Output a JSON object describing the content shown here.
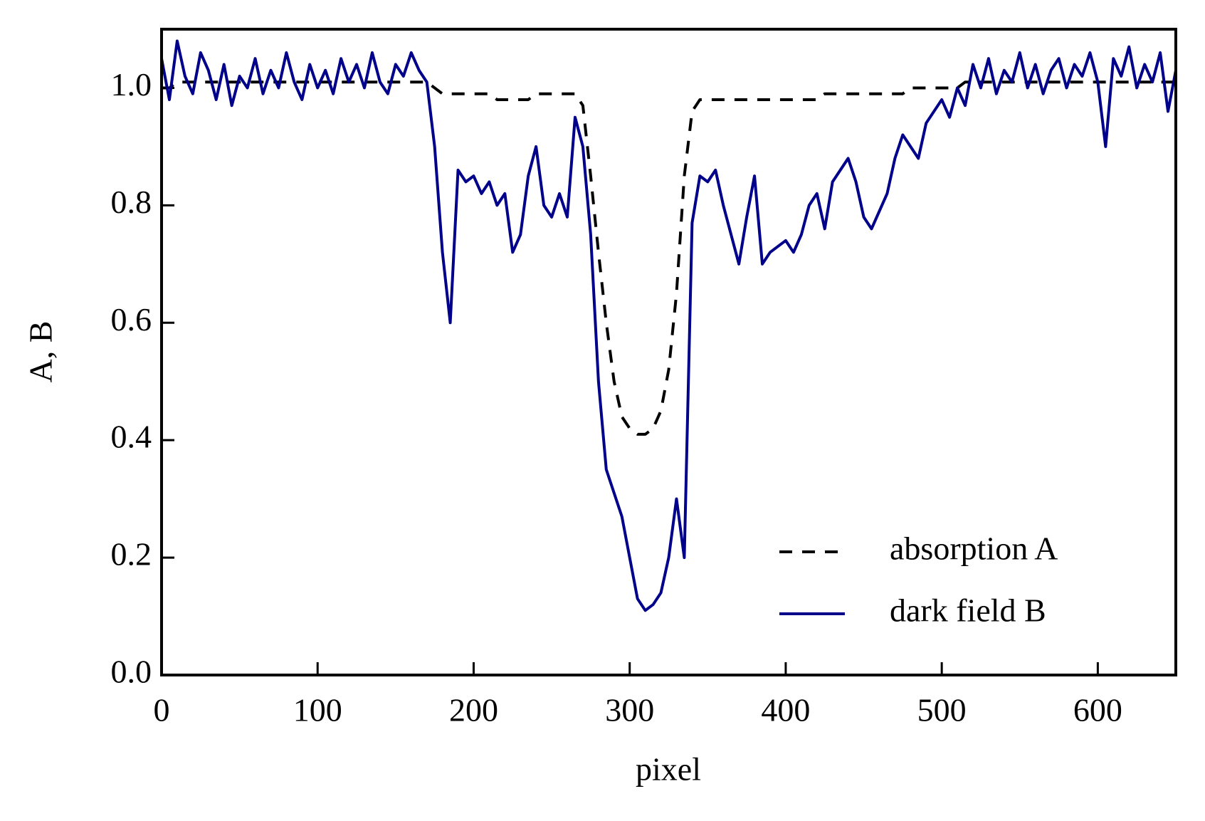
{
  "chart_data": {
    "type": "line",
    "x_label": "pixel",
    "y_label": "A, B",
    "xlim": [
      0,
      650
    ],
    "ylim": [
      0,
      1.1
    ],
    "xticks": [
      0,
      100,
      200,
      300,
      400,
      500,
      600
    ],
    "yticks": [
      {
        "value": 0,
        "label": "0.0"
      },
      {
        "value": 0.2,
        "label": "0.2"
      },
      {
        "value": 0.4,
        "label": "0.4"
      },
      {
        "value": 0.6,
        "label": "0.6"
      },
      {
        "value": 0.8,
        "label": "0.8"
      },
      {
        "value": 1.0,
        "label": "1.0"
      }
    ],
    "grid": false,
    "legend": "lower right",
    "x": [
      0,
      5,
      10,
      15,
      20,
      25,
      30,
      35,
      40,
      45,
      50,
      55,
      60,
      65,
      70,
      75,
      80,
      85,
      90,
      95,
      100,
      105,
      110,
      115,
      120,
      125,
      130,
      135,
      140,
      145,
      150,
      155,
      160,
      165,
      170,
      175,
      180,
      185,
      190,
      195,
      200,
      205,
      210,
      215,
      220,
      225,
      230,
      235,
      240,
      245,
      250,
      255,
      260,
      265,
      270,
      275,
      280,
      285,
      290,
      295,
      300,
      305,
      310,
      315,
      320,
      325,
      330,
      335,
      340,
      345,
      350,
      355,
      360,
      365,
      370,
      375,
      380,
      385,
      390,
      395,
      400,
      405,
      410,
      415,
      420,
      425,
      430,
      435,
      440,
      445,
      450,
      455,
      460,
      465,
      470,
      475,
      480,
      485,
      490,
      495,
      500,
      505,
      510,
      515,
      520,
      525,
      530,
      535,
      540,
      545,
      550,
      555,
      560,
      565,
      570,
      575,
      580,
      585,
      590,
      595,
      600,
      605,
      610,
      615,
      620,
      625,
      630,
      635,
      640,
      645,
      650
    ],
    "series": [
      {
        "name": "absorption A",
        "color": "#000000",
        "linestyle": "dashed",
        "values": [
          1.0,
          1.0,
          1.01,
          1.01,
          1.01,
          1.01,
          1.01,
          1.01,
          1.01,
          1.01,
          1.01,
          1.01,
          1.01,
          1.01,
          1.01,
          1.01,
          1.01,
          1.01,
          1.01,
          1.01,
          1.01,
          1.01,
          1.01,
          1.01,
          1.01,
          1.01,
          1.01,
          1.01,
          1.01,
          1.01,
          1.01,
          1.01,
          1.01,
          1.01,
          1.01,
          1.0,
          0.99,
          0.99,
          0.99,
          0.99,
          0.99,
          0.99,
          0.99,
          0.98,
          0.98,
          0.98,
          0.98,
          0.98,
          0.99,
          0.99,
          0.99,
          0.99,
          0.99,
          0.99,
          0.97,
          0.85,
          0.72,
          0.6,
          0.5,
          0.44,
          0.42,
          0.41,
          0.41,
          0.42,
          0.45,
          0.52,
          0.65,
          0.85,
          0.96,
          0.98,
          0.98,
          0.98,
          0.98,
          0.98,
          0.98,
          0.98,
          0.98,
          0.98,
          0.98,
          0.98,
          0.98,
          0.98,
          0.98,
          0.98,
          0.98,
          0.99,
          0.99,
          0.99,
          0.99,
          0.99,
          0.99,
          0.99,
          0.99,
          0.99,
          0.99,
          0.99,
          1.0,
          1.0,
          1.0,
          1.0,
          1.0,
          1.0,
          1.0,
          1.01,
          1.01,
          1.01,
          1.01,
          1.01,
          1.01,
          1.01,
          1.01,
          1.01,
          1.01,
          1.01,
          1.01,
          1.01,
          1.01,
          1.01,
          1.01,
          1.01,
          1.01,
          1.01,
          1.01,
          1.01,
          1.01,
          1.01,
          1.01,
          1.01,
          1.01,
          1.01,
          1.01
        ]
      },
      {
        "name": "dark field B",
        "color": "#00008b",
        "linestyle": "solid",
        "values": [
          1.05,
          0.98,
          1.08,
          1.02,
          0.99,
          1.06,
          1.03,
          0.98,
          1.04,
          0.97,
          1.02,
          1.0,
          1.05,
          0.99,
          1.03,
          1.0,
          1.06,
          1.01,
          0.98,
          1.04,
          1.0,
          1.03,
          0.99,
          1.05,
          1.01,
          1.04,
          1.0,
          1.06,
          1.01,
          0.99,
          1.04,
          1.02,
          1.06,
          1.03,
          1.01,
          0.9,
          0.72,
          0.6,
          0.86,
          0.84,
          0.85,
          0.82,
          0.84,
          0.8,
          0.82,
          0.72,
          0.75,
          0.85,
          0.9,
          0.8,
          0.78,
          0.82,
          0.78,
          0.95,
          0.9,
          0.75,
          0.5,
          0.35,
          0.31,
          0.27,
          0.2,
          0.13,
          0.11,
          0.12,
          0.14,
          0.2,
          0.3,
          0.2,
          0.77,
          0.85,
          0.84,
          0.86,
          0.8,
          0.75,
          0.7,
          0.78,
          0.85,
          0.7,
          0.72,
          0.73,
          0.74,
          0.72,
          0.75,
          0.8,
          0.82,
          0.76,
          0.84,
          0.86,
          0.88,
          0.84,
          0.78,
          0.76,
          0.79,
          0.82,
          0.88,
          0.92,
          0.9,
          0.88,
          0.94,
          0.96,
          0.98,
          0.95,
          1.0,
          0.97,
          1.04,
          1.0,
          1.05,
          0.99,
          1.03,
          1.01,
          1.06,
          1.0,
          1.04,
          0.99,
          1.03,
          1.05,
          1.0,
          1.04,
          1.02,
          1.06,
          1.01,
          0.9,
          1.05,
          1.02,
          1.07,
          1.0,
          1.04,
          1.01,
          1.06,
          0.96,
          1.03
        ]
      }
    ]
  }
}
